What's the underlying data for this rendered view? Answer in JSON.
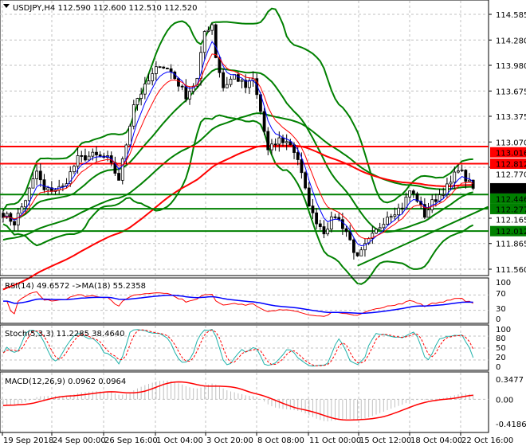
{
  "chart_data": {
    "type": "candlestick",
    "symbol": "USDJPY,H4",
    "ohlc_readout": [
      "112.590",
      "112.600",
      "112.510",
      "112.520"
    ],
    "price_ticks": [
      "114.585",
      "114.280",
      "113.980",
      "113.675",
      "113.375",
      "113.070",
      "112.770",
      "112.165",
      "111.865",
      "111.560"
    ],
    "ylim": [
      111.56,
      114.585
    ],
    "current_price": "112.520",
    "close_keypoints": [
      [
        0,
        112.22
      ],
      [
        3,
        112.11
      ],
      [
        6,
        112.39
      ],
      [
        9,
        112.72
      ],
      [
        11,
        112.49
      ],
      [
        16,
        112.53
      ],
      [
        20,
        112.87
      ],
      [
        24,
        112.91
      ],
      [
        28,
        112.87
      ],
      [
        31,
        112.63
      ],
      [
        33,
        113.05
      ],
      [
        35,
        113.53
      ],
      [
        38,
        113.72
      ],
      [
        42,
        114.0
      ],
      [
        45,
        113.9
      ],
      [
        49,
        113.62
      ],
      [
        52,
        113.81
      ],
      [
        54,
        114.38
      ],
      [
        56,
        114.47
      ],
      [
        57,
        114.09
      ],
      [
        59,
        113.72
      ],
      [
        62,
        113.86
      ],
      [
        65,
        113.72
      ],
      [
        67,
        113.81
      ],
      [
        69,
        113.43
      ],
      [
        71,
        112.96
      ],
      [
        74,
        113.1
      ],
      [
        77,
        113.05
      ],
      [
        79,
        112.87
      ],
      [
        81,
        112.49
      ],
      [
        83,
        112.2
      ],
      [
        86,
        112.01
      ],
      [
        89,
        112.2
      ],
      [
        92,
        112.01
      ],
      [
        95,
        111.68
      ],
      [
        97,
        111.83
      ],
      [
        100,
        112.01
      ],
      [
        103,
        112.2
      ],
      [
        107,
        112.3
      ],
      [
        109,
        112.49
      ],
      [
        111,
        112.39
      ],
      [
        113,
        112.2
      ],
      [
        115,
        112.35
      ],
      [
        118,
        112.49
      ],
      [
        120,
        112.58
      ],
      [
        122,
        112.77
      ],
      [
        124,
        112.63
      ],
      [
        126,
        112.52
      ]
    ],
    "levels": [
      {
        "price": "113.016",
        "color": "#ff0000"
      },
      {
        "price": "112.812",
        "color": "#ff0000"
      },
      {
        "price": "112.446",
        "color": "#008000"
      },
      {
        "price": "112.277",
        "color": "#008000"
      },
      {
        "price": "112.012",
        "color": "#008000"
      }
    ],
    "trendline": {
      "from": [
        95,
        111.6
      ],
      "to": [
        130,
        112.3
      ],
      "color": "#008000"
    },
    "time_labels": [
      "19 Sep 2018",
      "24 Sep 00:00",
      "26 Sep 16:00",
      "1 Oct 04:00",
      "3 Oct 20:00",
      "8 Oct 08:00",
      "11 Oct 00:00",
      "15 Oct 12:00",
      "18 Oct 04:00",
      "22 Oct 16:00"
    ],
    "rsi": {
      "label": "RSI(14) 49.6572  ->MA(18) 55.2358",
      "ticks": [
        "100",
        "70",
        "30",
        "0"
      ],
      "colors": [
        "#ff0000",
        "#0000ff"
      ]
    },
    "stoch": {
      "label": "Stoch(5,3,3) 11.2285 38.4640",
      "ticks": [
        "100",
        "80",
        "50",
        "20",
        "0"
      ],
      "colors": [
        "#20b2aa",
        "#ff0000"
      ]
    },
    "macd": {
      "label": "MACD(12,26,9) 0.0962 0.0964",
      "ticks": [
        "0.3477",
        "0.00",
        "-0.4186"
      ],
      "range": [
        -0.4186,
        0.3477
      ],
      "colors": [
        "#c0c0c0",
        "#ff0000"
      ]
    }
  }
}
